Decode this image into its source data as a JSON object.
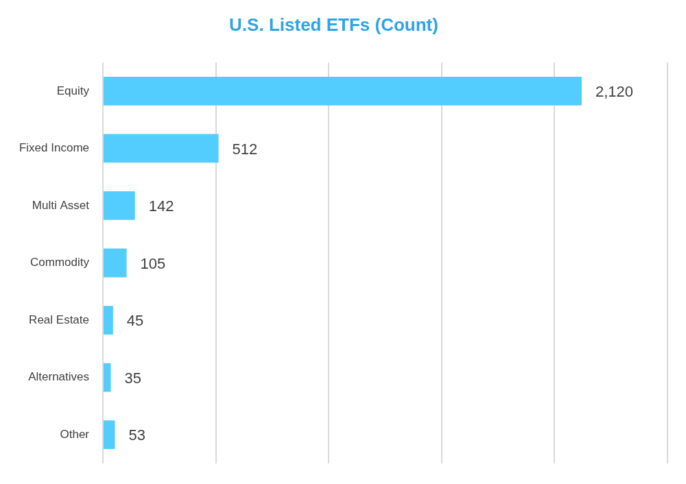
{
  "chart_data": {
    "type": "bar",
    "orientation": "horizontal",
    "title": "U.S. Listed ETFs (Count)",
    "categories": [
      "Equity",
      "Fixed Income",
      "Multi Asset",
      "Commodity",
      "Real Estate",
      "Alternatives",
      "Other"
    ],
    "values": [
      2120,
      512,
      142,
      105,
      45,
      35,
      53
    ],
    "value_labels": [
      "2,120",
      "512",
      "142",
      "105",
      "45",
      "35",
      "53"
    ],
    "color": "#52cdfe",
    "xlim": [
      0,
      2500
    ],
    "xticks": [
      0,
      500,
      1000,
      1500,
      2000,
      2500
    ],
    "grid": true,
    "data_labels": true,
    "tick_labels": "y"
  }
}
